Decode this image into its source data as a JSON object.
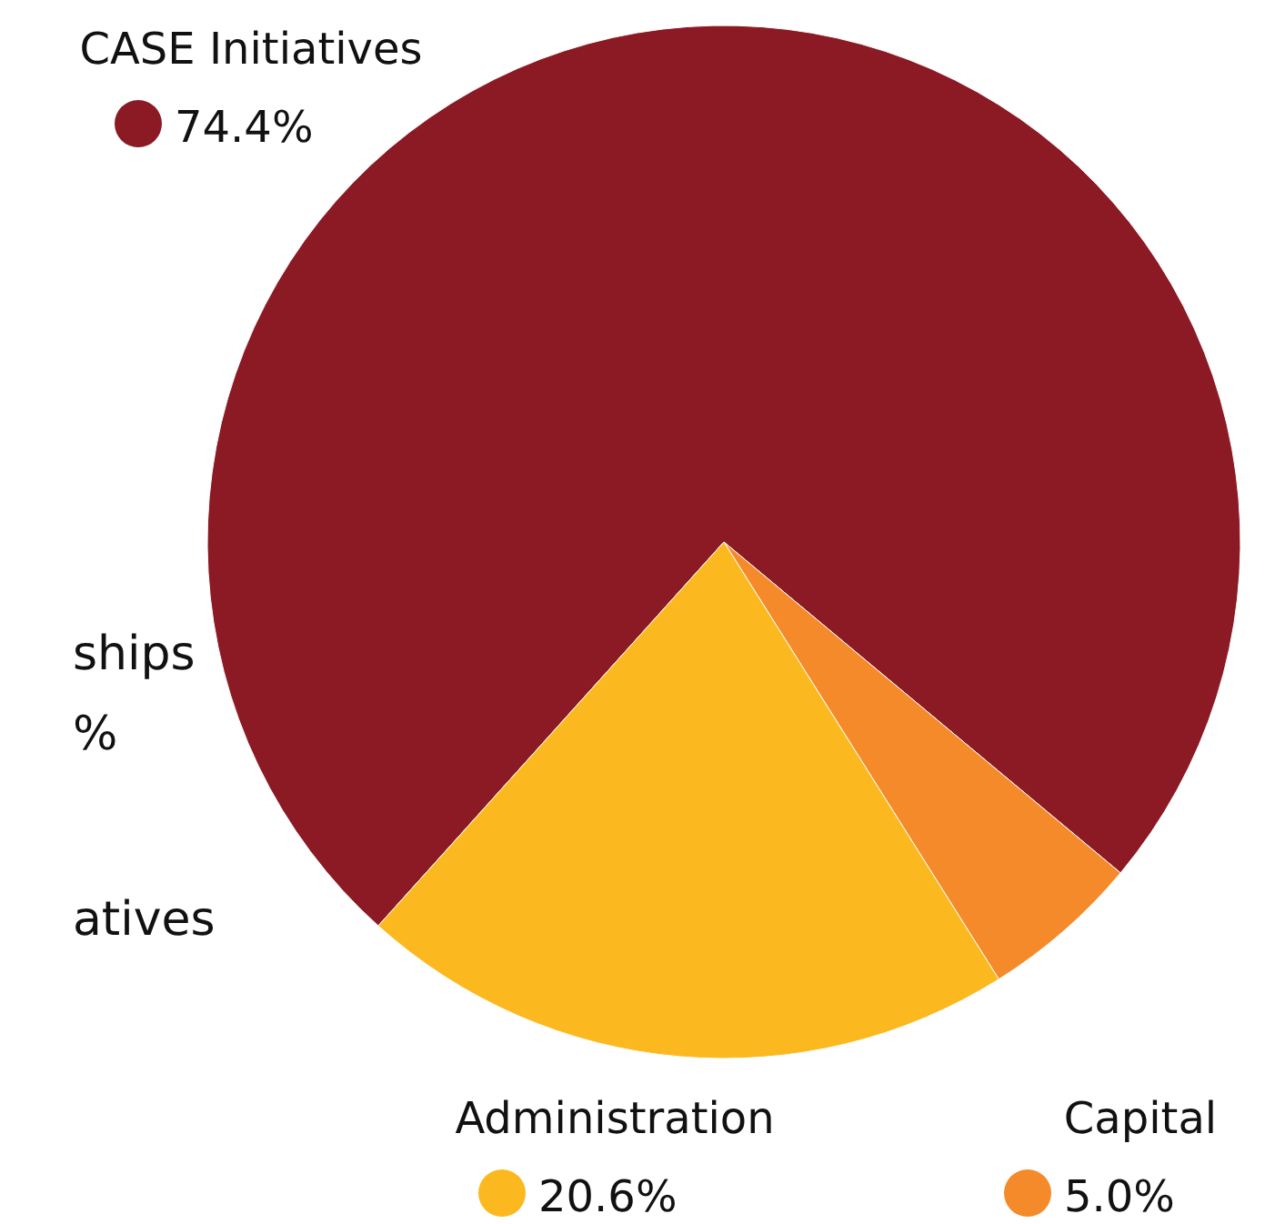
{
  "chart_data": {
    "type": "pie",
    "categories": [
      "CASE Initiatives",
      "Capital",
      "Administration"
    ],
    "values": [
      74.4,
      5.0,
      20.6
    ],
    "value_labels": [
      "74.4%",
      "5.0%",
      "20.6%"
    ],
    "colors": [
      "#8b1a24",
      "#f58a2a",
      "#fbb91f"
    ],
    "annotations": [
      "ships",
      "%",
      "atives"
    ]
  }
}
